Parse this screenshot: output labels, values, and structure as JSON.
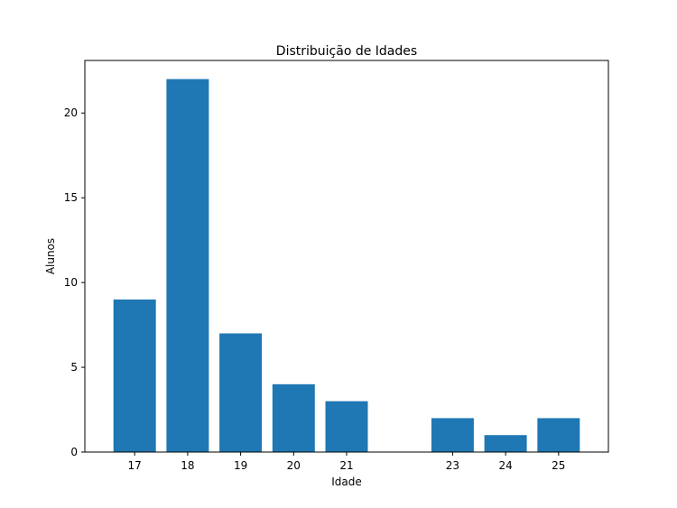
{
  "chart_data": {
    "type": "bar",
    "title": "Distribuição de Idades",
    "xlabel": "Idade",
    "ylabel": "Alunos",
    "x": [
      17,
      18,
      19,
      20,
      21,
      23,
      24,
      25
    ],
    "categories": [
      "17",
      "18",
      "19",
      "20",
      "21",
      "23",
      "24",
      "25"
    ],
    "values": [
      9,
      22,
      7,
      4,
      3,
      2,
      1,
      2
    ],
    "xlim": [
      16.06,
      25.94
    ],
    "ylim": [
      0,
      23.1
    ],
    "yticks": [
      0,
      5,
      10,
      15,
      20
    ],
    "grid": false,
    "legend": "none",
    "bar_color": "#1f77b4"
  }
}
